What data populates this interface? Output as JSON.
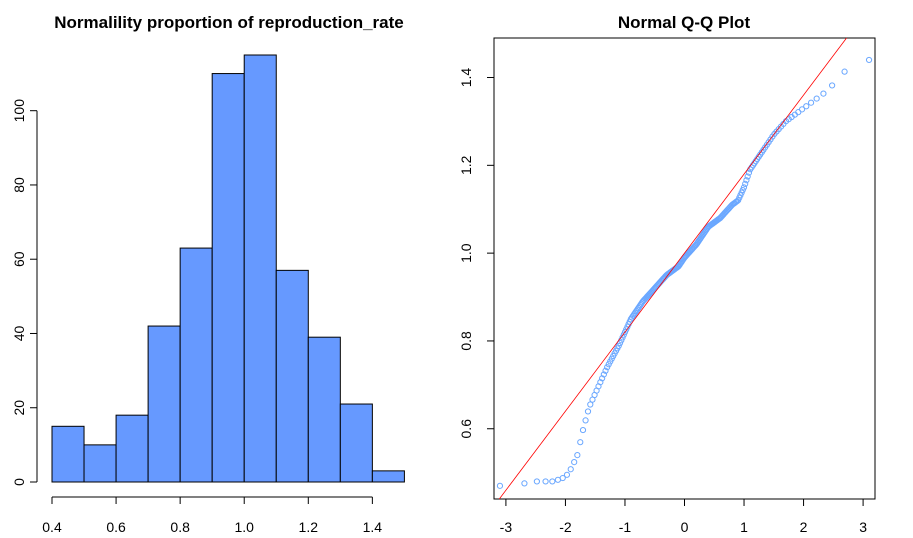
{
  "colors": {
    "bar_fill": "#6699ff",
    "bar_stroke": "#000000",
    "point_stroke": "#6aa7ff",
    "line": "#ff0000"
  },
  "chart_data": [
    {
      "type": "bar",
      "title": "Normalility proportion of reproduction_rate",
      "xlabel": "",
      "ylabel": "",
      "bins": [
        {
          "x0": 0.4,
          "x1": 0.5,
          "count": 15
        },
        {
          "x0": 0.5,
          "x1": 0.6,
          "count": 10
        },
        {
          "x0": 0.6,
          "x1": 0.7,
          "count": 18
        },
        {
          "x0": 0.7,
          "x1": 0.8,
          "count": 42
        },
        {
          "x0": 0.8,
          "x1": 0.9,
          "count": 63
        },
        {
          "x0": 0.9,
          "x1": 1.0,
          "count": 110
        },
        {
          "x0": 1.0,
          "x1": 1.1,
          "count": 115
        },
        {
          "x0": 1.1,
          "x1": 1.2,
          "count": 57
        },
        {
          "x0": 1.2,
          "x1": 1.3,
          "count": 39
        },
        {
          "x0": 1.3,
          "x1": 1.4,
          "count": 21
        },
        {
          "x0": 1.4,
          "x1": 1.5,
          "count": 3
        }
      ],
      "xticks": [
        0.4,
        0.6,
        0.8,
        1.0,
        1.2,
        1.4
      ],
      "xtick_labels": [
        "0.4",
        "0.6",
        "0.8",
        "1.0",
        "1.2",
        "1.4"
      ],
      "yticks": [
        0,
        20,
        40,
        60,
        80,
        100
      ],
      "ytick_labels": [
        "0",
        "20",
        "40",
        "60",
        "80",
        "100"
      ],
      "xlim": [
        0.4,
        1.5
      ],
      "ylim": [
        0,
        115
      ],
      "grid": false
    },
    {
      "type": "scatter",
      "title": "Normal Q-Q Plot",
      "xlabel": "",
      "ylabel": "",
      "xlim": [
        -3.2,
        3.2
      ],
      "ylim": [
        0.44,
        1.49
      ],
      "xticks": [
        -3,
        -2,
        -1,
        0,
        1,
        2,
        3
      ],
      "xtick_labels": [
        "-3",
        "-2",
        "-1",
        "0",
        "1",
        "2",
        "3"
      ],
      "yticks": [
        0.6,
        0.8,
        1.0,
        1.2,
        1.4
      ],
      "ytick_labels": [
        "0.6",
        "0.8",
        "1.0",
        "1.2",
        "1.4"
      ],
      "reference_line": {
        "intercept": 1.0,
        "slope": 0.18
      },
      "quantile_anchors": {
        "theoretical": [
          -3.1,
          -2.8,
          -2.6,
          -2.2,
          -2.0,
          -1.9,
          -1.8,
          -1.7,
          -1.6,
          -1.5,
          -1.4,
          -1.3,
          -1.1,
          -0.9,
          -0.7,
          -0.5,
          -0.3,
          -0.1,
          0.0,
          0.2,
          0.4,
          0.6,
          0.8,
          0.9,
          1.0,
          1.1,
          1.3,
          1.5,
          1.7,
          2.0,
          2.2,
          2.4,
          2.6,
          2.8,
          3.1
        ],
        "sample": [
          0.47,
          0.47,
          0.48,
          0.48,
          0.49,
          0.51,
          0.54,
          0.6,
          0.65,
          0.68,
          0.71,
          0.74,
          0.79,
          0.85,
          0.89,
          0.92,
          0.95,
          0.97,
          0.99,
          1.02,
          1.06,
          1.08,
          1.11,
          1.12,
          1.15,
          1.19,
          1.23,
          1.27,
          1.3,
          1.33,
          1.35,
          1.37,
          1.4,
          1.43,
          1.44
        ]
      },
      "n_points": 206,
      "grid": false
    }
  ]
}
